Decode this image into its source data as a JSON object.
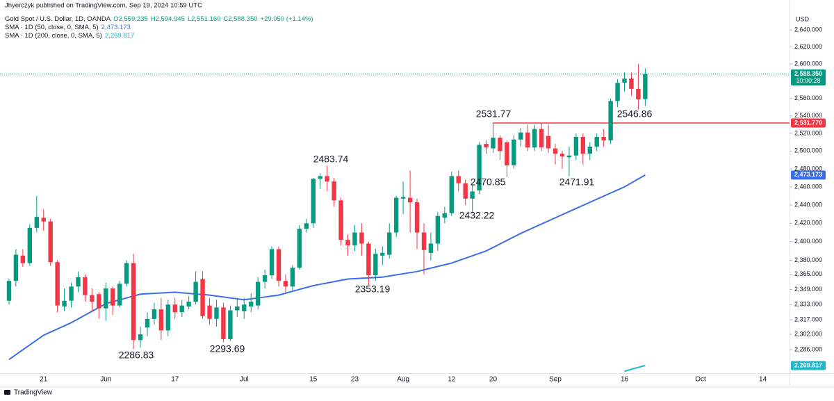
{
  "chart_data": {
    "type": "candlestick",
    "publisher": "Jhyerczyk published on TradingView.com, Sep 19, 2024 10:59 UTC",
    "symbol": "Gold Spot / U.S. Dollar, 1D, OANDA",
    "ohlc_legend": [
      "O2,559.235",
      "H2,594.945",
      "L2,551.160",
      "C2,588.350",
      "+29.050 (+1.14%)"
    ],
    "currency": "USD",
    "footer": "TradingView",
    "log_scale": true,
    "grid": false,
    "up_color": "#089981",
    "down_color": "#f23645",
    "categories": [
      null,
      null,
      null,
      null,
      null,
      "21",
      null,
      null,
      null,
      null,
      null,
      null,
      null,
      null,
      "Jun",
      null,
      null,
      null,
      null,
      null,
      null,
      null,
      null,
      null,
      "17",
      null,
      null,
      null,
      null,
      null,
      null,
      null,
      null,
      null,
      "Jul",
      null,
      null,
      null,
      null,
      null,
      null,
      null,
      null,
      null,
      "15",
      null,
      null,
      null,
      null,
      null,
      "23",
      null,
      null,
      null,
      null,
      null,
      null,
      "Aug",
      null,
      null,
      null,
      null,
      null,
      null,
      "12",
      null,
      null,
      null,
      null,
      null,
      "20",
      null,
      null,
      null,
      null,
      null,
      null,
      null,
      null,
      "Sep",
      null,
      null,
      null,
      null,
      null,
      null,
      null,
      null,
      null,
      "16",
      null,
      null,
      null,
      null,
      null,
      null,
      null,
      null,
      null,
      null,
      "Oct",
      null,
      null,
      null,
      null,
      null,
      null,
      null,
      null,
      "14",
      null,
      null,
      null
    ],
    "open": [
      2337,
      2358,
      2385,
      2377,
      2415,
      2426,
      2422,
      2378,
      2331,
      2337,
      2352,
      2362,
      2343,
      2344,
      2329,
      2350,
      2332,
      2355,
      2377,
      2296,
      2309,
      2318,
      2328,
      2306,
      2333,
      2325,
      2331,
      2336,
      2360,
      2332,
      2318,
      2330,
      2297,
      2327,
      2326,
      2331,
      2332,
      2357,
      2364,
      2392,
      2358,
      2352,
      2372,
      2414,
      2420,
      2469,
      2472,
      2466,
      2445,
      2402,
      2396,
      2410,
      2398,
      2364,
      2385,
      2386,
      2410,
      2447,
      2448,
      2443,
      2410,
      2388,
      2398,
      2426,
      2431,
      2472,
      2464,
      2447,
      2456,
      2508,
      2503,
      2515,
      2510,
      2484,
      2513,
      2521,
      2504,
      2525,
      2517,
      2503,
      2497,
      2493,
      2495,
      2516,
      2497,
      2505,
      2516,
      2512,
      2557,
      2578,
      2583,
      2571,
      2559.235,
      null,
      null,
      null,
      null,
      null,
      null,
      null,
      null,
      null,
      null,
      null,
      null,
      null,
      null,
      null,
      null,
      null,
      null,
      null,
      null
    ],
    "high": [
      2360,
      2392,
      2392,
      2419,
      2450,
      2435,
      2425,
      2380,
      2350,
      2356,
      2368,
      2365,
      2350,
      2346,
      2356,
      2352,
      2358,
      2380,
      2387,
      2310,
      2325,
      2335,
      2340,
      2338,
      2340,
      2338,
      2342,
      2368,
      2368,
      2340,
      2338,
      2335,
      2332,
      2340,
      2340,
      2345,
      2362,
      2370,
      2395,
      2395,
      2365,
      2375,
      2418,
      2425,
      2470,
      2475,
      2483.74,
      2470,
      2448,
      2408,
      2418,
      2420,
      2400,
      2392,
      2395,
      2420,
      2450,
      2466,
      2478,
      2447,
      2420,
      2410,
      2432,
      2438,
      2477,
      2478,
      2468,
      2462,
      2510,
      2512,
      2531.77,
      2518,
      2512,
      2518,
      2526,
      2530,
      2530,
      2532,
      2530,
      2508,
      2500,
      2505,
      2520,
      2520,
      2510,
      2520,
      2525,
      2560,
      2582,
      2590,
      2590,
      2600,
      2594.945,
      null,
      null,
      null,
      null,
      null,
      null,
      null,
      null,
      null,
      null,
      null,
      null,
      null,
      null,
      null,
      null,
      null,
      null,
      null,
      null
    ],
    "low": [
      2333,
      2352,
      2373,
      2374,
      2410,
      2412,
      2374,
      2325,
      2326,
      2330,
      2346,
      2336,
      2325,
      2318,
      2316,
      2322,
      2330,
      2352,
      2286.83,
      2288,
      2300,
      2312,
      2296,
      2300,
      2318,
      2320,
      2328,
      2333,
      2318,
      2312,
      2310,
      2293.69,
      2295,
      2320,
      2318,
      2325,
      2328,
      2350,
      2360,
      2352,
      2346,
      2348,
      2370,
      2410,
      2415,
      2458,
      2455,
      2438,
      2396,
      2385,
      2390,
      2385,
      2353.19,
      2358,
      2375,
      2382,
      2405,
      2430,
      2410,
      2392,
      2365,
      2380,
      2390,
      2420,
      2428,
      2455,
      2440,
      2432.22,
      2452,
      2497,
      2498,
      2490,
      2470.85,
      2480,
      2505,
      2500,
      2500,
      2500,
      2498,
      2485,
      2480,
      2471.91,
      2490,
      2485,
      2490,
      2500,
      2505,
      2508,
      2550,
      2568,
      2563,
      2546.86,
      2551.16,
      null,
      null,
      null,
      null,
      null,
      null,
      null,
      null,
      null,
      null,
      null,
      null,
      null,
      null,
      null,
      null,
      null,
      null,
      null,
      null
    ],
    "close": [
      2358,
      2386,
      2377,
      2415,
      2427,
      2422,
      2378,
      2332,
      2337,
      2352,
      2362,
      2343,
      2336,
      2329,
      2350,
      2332,
      2355,
      2377,
      2296,
      2302,
      2318,
      2328,
      2306,
      2333,
      2325,
      2332,
      2336,
      2357,
      2321,
      2318,
      2330,
      2297,
      2327,
      2331,
      2333,
      2336,
      2357,
      2364,
      2392,
      2358,
      2352,
      2372,
      2414,
      2420,
      2469,
      2472,
      2466,
      2445,
      2402,
      2396,
      2410,
      2398,
      2364,
      2387,
      2388,
      2410,
      2448,
      2449,
      2443,
      2410,
      2391,
      2398,
      2428,
      2431,
      2472,
      2464,
      2447,
      2455,
      2507,
      2504,
      2515,
      2500,
      2484,
      2513,
      2521,
      2504,
      2525,
      2504,
      2503,
      2497,
      2494,
      2495,
      2516,
      2497,
      2505,
      2516,
      2512,
      2557,
      2578,
      2583,
      2571,
      2559,
      2588.35,
      null,
      null,
      null,
      null,
      null,
      null,
      null,
      null,
      null,
      null,
      null,
      null,
      null,
      null,
      null,
      null,
      null,
      null,
      null,
      null
    ],
    "price_tag": {
      "label": "2,588.350",
      "countdown": "10:00:28"
    },
    "overlays": [
      {
        "name": "SMA · 1D (50, close, 0, SMA, 5)",
        "color": "#3a6ee8",
        "value_label": "2,473.173",
        "values": [
          2276,
          2281,
          2286,
          2291,
          2296,
          2301,
          2304.3,
          2307.5,
          2310.8,
          2314,
          2318,
          2322,
          2326,
          2330,
          2334,
          2336,
          2338,
          2340,
          2342,
          2344,
          2344.4,
          2344.8,
          2345.2,
          2345.6,
          2346,
          2345.4,
          2344.8,
          2344.2,
          2343.6,
          2343,
          2342,
          2341,
          2340,
          2339,
          2338,
          2339,
          2340,
          2341,
          2342,
          2343,
          2345,
          2347,
          2349,
          2351,
          2353,
          2354.4,
          2355.8,
          2357.2,
          2358.6,
          2360,
          2360.4,
          2360.8,
          2361.2,
          2361.6,
          2362,
          2363.2,
          2364.4,
          2365.6,
          2366.8,
          2368,
          2369.8,
          2371.6,
          2373.4,
          2375.2,
          2377,
          2379.6,
          2382.2,
          2384.8,
          2387.4,
          2390,
          2393.8,
          2397.6,
          2401.4,
          2405.2,
          2409,
          2412.4,
          2415.8,
          2419.2,
          2422.6,
          2426,
          2429.4,
          2432.8,
          2436.2,
          2439.6,
          2443,
          2446.4,
          2449.8,
          2453.2,
          2456.6,
          2460,
          2464.4,
          2468.8,
          2473.173,
          null,
          null,
          null,
          null,
          null,
          null,
          null,
          null,
          null,
          null,
          null,
          null,
          null,
          null,
          null,
          null,
          null,
          null,
          null,
          null
        ]
      },
      {
        "name": "SMA · 1D (200, close, 0, SMA, 5)",
        "color": "#1fb8cf",
        "value_label": "2,269.817",
        "values": [
          null,
          null,
          null,
          null,
          null,
          null,
          null,
          null,
          null,
          null,
          null,
          null,
          null,
          null,
          null,
          null,
          null,
          null,
          null,
          null,
          null,
          null,
          null,
          null,
          null,
          null,
          null,
          null,
          null,
          null,
          null,
          null,
          null,
          null,
          null,
          null,
          null,
          null,
          null,
          null,
          null,
          null,
          null,
          null,
          null,
          null,
          null,
          null,
          null,
          null,
          null,
          null,
          null,
          null,
          null,
          null,
          null,
          null,
          null,
          null,
          null,
          null,
          null,
          null,
          null,
          null,
          null,
          null,
          null,
          null,
          null,
          null,
          null,
          null,
          null,
          null,
          null,
          null,
          null,
          null,
          null,
          null,
          null,
          null,
          null,
          null,
          null,
          null,
          null,
          2264,
          2266,
          2268,
          2269.817,
          null,
          null,
          null,
          null,
          null,
          null,
          null,
          null,
          null,
          null,
          null,
          null,
          null,
          null,
          null,
          null,
          null,
          null,
          null,
          null
        ]
      }
    ],
    "hline": {
      "value": 2531.77,
      "label": "2,531.770",
      "color": "#f23645"
    },
    "annotations": [
      "2531.77",
      "2546.86",
      "2483.74",
      "2470.85",
      "2471.91",
      "2432.22",
      "2353.19",
      "2286.83",
      "2293.69"
    ],
    "ylim": [
      2262,
      2676
    ],
    "yticks": [
      {
        "value": 2640,
        "label": "2,640.000"
      },
      {
        "value": 2620,
        "label": "2,620.000"
      },
      {
        "value": 2600,
        "label": "2,600.000"
      },
      {
        "value": 2560,
        "label": "2,560.000"
      },
      {
        "value": 2540,
        "label": "2,540.000"
      },
      {
        "value": 2520,
        "label": "2,520.000"
      },
      {
        "value": 2500,
        "label": "2,500.000"
      },
      {
        "value": 2480,
        "label": "2,480.000"
      },
      {
        "value": 2460,
        "label": "2,460.000"
      },
      {
        "value": 2440,
        "label": "2,440.000"
      },
      {
        "value": 2420,
        "label": "2,420.000"
      },
      {
        "value": 2400,
        "label": "2,400.000"
      },
      {
        "value": 2380,
        "label": "2,380.000"
      },
      {
        "value": 2365,
        "label": "2,365.000"
      },
      {
        "value": 2349,
        "label": "2,349.000"
      },
      {
        "value": 2333,
        "label": "2,333.000"
      },
      {
        "value": 2317,
        "label": "2,317.000"
      },
      {
        "value": 2302,
        "label": "2,302.000"
      },
      {
        "value": 2286,
        "label": "2,286.000"
      }
    ]
  }
}
